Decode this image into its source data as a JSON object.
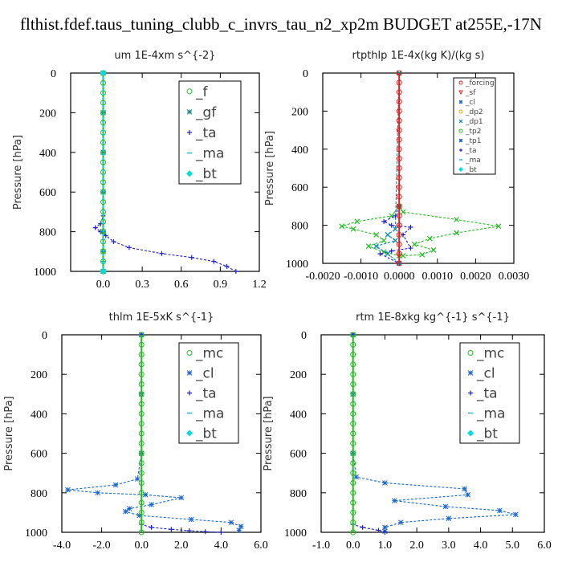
{
  "title": "flthist.fdef.taus_tuning_clubb_c_invrs_tau_n2_xp2m  BUDGET at255E,-17N",
  "chart_data": [
    {
      "type": "line",
      "title": "um   1E-4xm s^{-2}",
      "ylabel": "Pressure [hPa]",
      "xlim": [
        -0.25,
        1.2
      ],
      "ylim": [
        1000,
        0
      ],
      "xticks": [
        "0.0",
        "0.3",
        "0.6",
        "0.9",
        "1.2"
      ],
      "xtick_values": [
        0,
        0.3,
        0.6,
        0.9,
        1.2
      ],
      "yticks": [
        "0",
        "200",
        "400",
        "600",
        "800",
        "1000"
      ],
      "ytick_values": [
        0,
        200,
        400,
        600,
        800,
        1000
      ],
      "legend": [
        "_f",
        "_gf",
        "_ta",
        "_ma",
        "_bt"
      ],
      "legend_style": "big",
      "series": [
        {
          "name": "_ta",
          "color": "#2020cc",
          "marker": "plus",
          "x": [
            0,
            0,
            0,
            0,
            -0.02,
            -0.06,
            -0.02,
            0.02,
            0.08,
            0.2,
            0.45,
            0.68,
            0.85,
            0.95,
            1.02
          ],
          "y": [
            0,
            400,
            600,
            720,
            760,
            780,
            800,
            820,
            850,
            880,
            910,
            930,
            950,
            975,
            1000
          ]
        },
        {
          "name": "_ma",
          "color": "#00bbcc",
          "marker": "dash",
          "x": [
            0,
            0,
            0,
            0,
            0,
            0,
            0,
            0
          ],
          "y": [
            0,
            200,
            400,
            600,
            800,
            900,
            950,
            1000
          ]
        },
        {
          "name": "_gf",
          "color": "#1a8090",
          "marker": "star",
          "x": [
            0,
            0,
            0,
            0,
            0,
            0,
            0
          ],
          "y": [
            0,
            200,
            400,
            600,
            800,
            900,
            1000
          ]
        },
        {
          "name": "_f",
          "color": "#22bb22",
          "marker": "circle",
          "x": [
            0,
            0,
            0,
            0,
            0,
            0,
            0,
            0,
            0,
            0,
            0,
            0,
            0,
            0,
            0,
            0,
            0,
            0,
            0,
            0,
            0
          ],
          "y": [
            0,
            50,
            100,
            150,
            200,
            250,
            300,
            350,
            400,
            450,
            500,
            550,
            600,
            650,
            700,
            750,
            800,
            850,
            900,
            950,
            1000
          ]
        },
        {
          "name": "_bt",
          "color": "#00dddd",
          "marker": "diamond",
          "x": [
            0,
            0
          ],
          "y": [
            0,
            1000
          ]
        }
      ]
    },
    {
      "type": "line",
      "title": "rtpthlp   1E-4x(kg K)/(kg s)",
      "ylabel": "Pressure [hPa]",
      "xlim": [
        -0.002,
        0.003
      ],
      "ylim": [
        1000,
        0
      ],
      "xticks": [
        "-0.0020",
        "-0.0010",
        "0.0000",
        "0.0010",
        "0.0020",
        "0.0030"
      ],
      "xtick_values": [
        -0.002,
        -0.001,
        0,
        0.001,
        0.002,
        0.003
      ],
      "yticks": [
        "0",
        "200",
        "400",
        "600",
        "800",
        "1000"
      ],
      "ytick_values": [
        0,
        200,
        400,
        600,
        800,
        1000
      ],
      "legend": [
        "_forcing",
        "_sf",
        "_cl",
        "_dp2",
        "_dp1",
        "_tp2",
        "_tp1",
        "_ta",
        "_ma",
        "_bt"
      ],
      "legend_style": "small",
      "series": [
        {
          "name": "_tp2",
          "color": "#22bb22",
          "marker": "x",
          "x": [
            0,
            0,
            0.0001,
            0.0015,
            0.0026,
            0.0015,
            0.0008,
            0.0004,
            0.0009,
            0.0006,
            0.0001,
            0,
            -0.0004,
            -0.0008,
            -0.0004,
            -0.0006,
            -0.0012,
            -0.0015,
            -0.0011,
            -0.0002,
            0
          ],
          "y": [
            0,
            700,
            730,
            770,
            805,
            840,
            870,
            900,
            930,
            955,
            960,
            960,
            940,
            910,
            880,
            850,
            820,
            805,
            780,
            750,
            700
          ]
        },
        {
          "name": "_ta",
          "color": "#2020cc",
          "marker": "plus",
          "x": [
            0,
            -0.0001,
            -0.0004,
            -0.0002,
            0.0003,
            0.0001,
            0.0003,
            -0.0002,
            -0.0005,
            0
          ],
          "y": [
            700,
            750,
            780,
            800,
            810,
            850,
            920,
            935,
            950,
            1000
          ]
        },
        {
          "name": "_dp1",
          "color": "#0088aa",
          "marker": "x",
          "x": [
            0,
            -0.0001,
            -0.0003,
            -0.0001,
            -0.0006,
            -0.0003,
            0
          ],
          "y": [
            0,
            820,
            850,
            880,
            910,
            950,
            1000
          ]
        },
        {
          "name": "_forcing",
          "color": "#dd2222",
          "marker": "circle",
          "x": [
            0,
            0,
            0,
            0,
            0,
            0,
            0,
            0,
            0,
            0,
            0,
            0,
            0,
            0,
            0,
            0,
            0,
            0,
            0,
            0,
            0
          ],
          "y": [
            0,
            50,
            100,
            150,
            200,
            250,
            300,
            350,
            400,
            450,
            500,
            550,
            600,
            650,
            700,
            750,
            800,
            850,
            900,
            950,
            1000
          ]
        }
      ]
    },
    {
      "type": "line",
      "title": "thlm   1E-5xK s^{-1}",
      "ylabel": "Pressure [hPa]",
      "xlim": [
        -4,
        6
      ],
      "ylim": [
        1000,
        0
      ],
      "xticks": [
        "-4.0",
        "-2.0",
        "0.0",
        "2.0",
        "4.0",
        "6.0"
      ],
      "xtick_values": [
        -4,
        -2,
        0,
        2,
        4,
        6
      ],
      "yticks": [
        "0",
        "200",
        "400",
        "600",
        "800",
        "1000"
      ],
      "ytick_values": [
        0,
        200,
        400,
        600,
        800,
        1000
      ],
      "legend": [
        "_mc",
        "_cl",
        "_ta",
        "_ma",
        "_bt"
      ],
      "legend_style": "big",
      "series": [
        {
          "name": "_cl",
          "color": "#1a66cc",
          "marker": "star",
          "x": [
            0,
            0,
            0,
            -0.2,
            -1.3,
            -3.7,
            -2.2,
            0.2,
            2.0,
            0.5,
            -0.6,
            -0.8,
            -0.1,
            2.5,
            4.5,
            5.0,
            4.9
          ],
          "y": [
            0,
            300,
            600,
            730,
            760,
            785,
            800,
            810,
            825,
            860,
            880,
            895,
            915,
            935,
            950,
            970,
            990
          ]
        },
        {
          "name": "_ta",
          "color": "#2020cc",
          "marker": "plus",
          "x": [
            0,
            0,
            0.5,
            1.5,
            2.4,
            3.2,
            4.0
          ],
          "y": [
            0,
            960,
            975,
            985,
            992,
            997,
            1000
          ]
        },
        {
          "name": "_mc",
          "color": "#22bb22",
          "marker": "circle",
          "x": [
            0,
            0,
            0,
            0,
            0,
            0,
            0,
            0,
            0,
            0,
            0,
            0,
            0,
            0,
            0,
            0,
            0,
            0,
            0,
            0,
            0
          ],
          "y": [
            0,
            50,
            100,
            150,
            200,
            250,
            300,
            350,
            400,
            450,
            500,
            550,
            600,
            650,
            700,
            750,
            800,
            850,
            900,
            950,
            1000
          ]
        }
      ]
    },
    {
      "type": "line",
      "title": "rtm   1E-8xkg kg^{-1} s^{-1}",
      "ylabel": "Pressure [hPa]",
      "xlim": [
        -1,
        6
      ],
      "ylim": [
        1000,
        0
      ],
      "xticks": [
        "-1.0",
        "0.0",
        "1.0",
        "2.0",
        "3.0",
        "4.0",
        "5.0",
        "6.0"
      ],
      "xtick_values": [
        -1,
        0,
        1,
        2,
        3,
        4,
        5,
        6
      ],
      "yticks": [
        "0",
        "200",
        "400",
        "600",
        "800",
        "1000"
      ],
      "ytick_values": [
        0,
        200,
        400,
        600,
        800,
        1000
      ],
      "legend": [
        "_mc",
        "_cl",
        "_ta",
        "_ma",
        "_bt"
      ],
      "legend_style": "big",
      "series": [
        {
          "name": "_cl",
          "color": "#1a66cc",
          "marker": "star",
          "x": [
            0,
            0,
            0,
            0.1,
            1.0,
            3.5,
            3.6,
            1.3,
            2.9,
            4.6,
            5.1,
            3.0,
            1.5,
            1.0,
            1.0
          ],
          "y": [
            0,
            300,
            600,
            720,
            750,
            780,
            810,
            840,
            870,
            890,
            910,
            930,
            950,
            975,
            995
          ]
        },
        {
          "name": "_ta",
          "color": "#2020cc",
          "marker": "plus",
          "x": [
            0,
            0,
            0.3,
            0.8,
            1.0
          ],
          "y": [
            0,
            960,
            975,
            990,
            1000
          ]
        },
        {
          "name": "_mc",
          "color": "#22bb22",
          "marker": "circle",
          "x": [
            0,
            0,
            0,
            0,
            0,
            0,
            0,
            0,
            0,
            0,
            0,
            0,
            0,
            0,
            0,
            0,
            0,
            0,
            0,
            0,
            0
          ],
          "y": [
            0,
            50,
            100,
            150,
            200,
            250,
            300,
            350,
            400,
            450,
            500,
            550,
            600,
            650,
            700,
            750,
            800,
            850,
            900,
            950,
            1000
          ]
        }
      ]
    }
  ],
  "legend_colors": {
    "_f": "#22bb22",
    "_gf": "#1a8090",
    "_ta": "#2020cc",
    "_ma": "#00bbcc",
    "_bt": "#00dddd",
    "_mc": "#22bb22",
    "_cl": "#1a66cc",
    "_forcing": "#dd2222",
    "_sf": "#dd2222",
    "_dp2": "#ddaa00",
    "_dp1": "#0088aa",
    "_tp2": "#22bb22",
    "_tp1": "#1a66cc"
  },
  "legend_icons": {
    "_f": "circle",
    "_gf": "star",
    "_ta": "plus",
    "_ma": "dash",
    "_bt": "diamond",
    "_mc": "circle",
    "_cl": "star",
    "_forcing": "circle",
    "_sf": "triangle-down",
    "_dp2": "circle",
    "_dp1": "x",
    "_tp2": "circle",
    "_tp1": "star"
  }
}
